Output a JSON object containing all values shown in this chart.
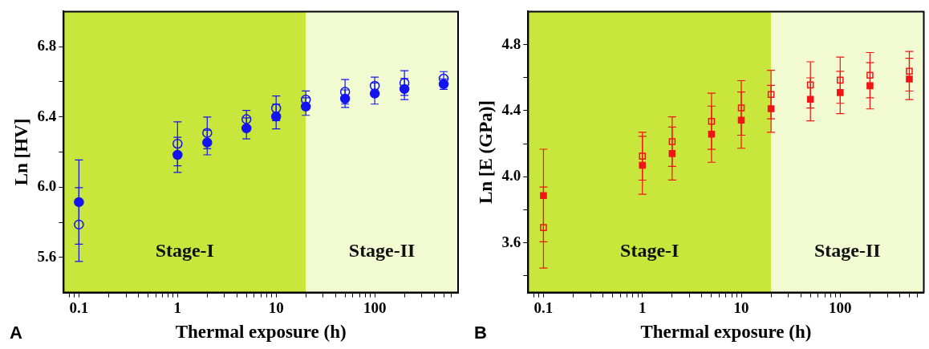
{
  "chart_data": [
    {
      "type": "scatter",
      "xlabel": "Thermal exposure (h)",
      "ylabel": "Ln [HV]",
      "log": "x",
      "grid": false,
      "legend": false,
      "marker": "circle",
      "annotations": [
        "A"
      ],
      "x": [
        0.1,
        1,
        2,
        5,
        10,
        20,
        50,
        100,
        200,
        500
      ],
      "xlim": [
        0.07,
        700
      ],
      "ylim": [
        5.4,
        7.0
      ],
      "xticks": [
        {
          "value": 0.08,
          "label": null
        },
        {
          "value": 0.09,
          "label": null
        },
        0.1,
        {
          "value": 0.2,
          "label": null
        },
        {
          "value": 0.3,
          "label": null
        },
        {
          "value": 0.4,
          "label": null
        },
        {
          "value": 0.5,
          "label": null
        },
        {
          "value": 0.6,
          "label": null
        },
        {
          "value": 0.7,
          "label": null
        },
        {
          "value": 0.8,
          "label": null
        },
        {
          "value": 0.9,
          "label": null
        },
        1,
        {
          "value": 2,
          "label": null
        },
        {
          "value": 3,
          "label": null
        },
        {
          "value": 4,
          "label": null
        },
        {
          "value": 5,
          "label": null
        },
        {
          "value": 6,
          "label": null
        },
        {
          "value": 7,
          "label": null
        },
        {
          "value": 8,
          "label": null
        },
        {
          "value": 9,
          "label": null
        },
        10,
        {
          "value": 20,
          "label": null
        },
        {
          "value": 30,
          "label": null
        },
        {
          "value": 40,
          "label": null
        },
        {
          "value": 50,
          "label": null
        },
        {
          "value": 60,
          "label": null
        },
        {
          "value": 70,
          "label": null
        },
        {
          "value": 80,
          "label": null
        },
        {
          "value": 90,
          "label": null
        },
        100,
        {
          "value": 200,
          "label": null
        },
        {
          "value": 300,
          "label": null
        },
        {
          "value": 400,
          "label": null
        },
        {
          "value": 500,
          "label": null
        },
        {
          "value": 600,
          "label": null
        }
      ],
      "yticks": [
        5.6,
        {
          "value": 5.8,
          "label": null
        },
        {
          "value": 6.0,
          "label": "6.0"
        },
        {
          "value": 6.2,
          "label": null
        },
        6.4,
        {
          "value": 6.6,
          "label": null
        },
        6.8
      ],
      "bands": [
        {
          "axis": "x",
          "from": 0.07,
          "to": 20,
          "label": "Stage-I",
          "color": "#c8e63c"
        },
        {
          "axis": "x",
          "from": 20,
          "to": 700,
          "label": "Stage-II",
          "color": "#f2fad2"
        }
      ],
      "series": [
        {
          "color": "#1414f0",
          "values": [
            5.915,
            6.184,
            6.254,
            6.335,
            6.402,
            6.459,
            6.504,
            6.533,
            6.559,
            6.587
          ],
          "errors": [
            0.24,
            0.1,
            0.07,
            0.06,
            0.07,
            0.05,
            0.05,
            0.06,
            0.06,
            0.03
          ]
        },
        {
          "color": "#1414f0",
          "values": [
            5.787,
            6.247,
            6.309,
            6.387,
            6.449,
            6.498,
            6.543,
            6.577,
            6.593,
            6.618
          ],
          "errors": [
            0.21,
            0.125,
            0.09,
            0.05,
            0.07,
            0.05,
            0.07,
            0.05,
            0.07,
            0.04
          ]
        }
      ]
    },
    {
      "type": "scatter",
      "xlabel": "Thermal exposure (h)",
      "ylabel": "Ln [E (GPa)]",
      "log": "x",
      "grid": false,
      "legend": false,
      "marker": "square",
      "annotations": [
        "B"
      ],
      "x": [
        0.1,
        1,
        2,
        5,
        10,
        20,
        50,
        100,
        200,
        500
      ],
      "xlim": [
        0.07,
        700
      ],
      "ylim": [
        3.3,
        5.0
      ],
      "xticks": [
        {
          "value": 0.08,
          "label": null
        },
        {
          "value": 0.09,
          "label": null
        },
        0.1,
        {
          "value": 0.2,
          "label": null
        },
        {
          "value": 0.3,
          "label": null
        },
        {
          "value": 0.4,
          "label": null
        },
        {
          "value": 0.5,
          "label": null
        },
        {
          "value": 0.6,
          "label": null
        },
        {
          "value": 0.7,
          "label": null
        },
        {
          "value": 0.8,
          "label": null
        },
        {
          "value": 0.9,
          "label": null
        },
        1,
        {
          "value": 2,
          "label": null
        },
        {
          "value": 3,
          "label": null
        },
        {
          "value": 4,
          "label": null
        },
        {
          "value": 5,
          "label": null
        },
        {
          "value": 6,
          "label": null
        },
        {
          "value": 7,
          "label": null
        },
        {
          "value": 8,
          "label": null
        },
        {
          "value": 9,
          "label": null
        },
        10,
        {
          "value": 20,
          "label": null
        },
        {
          "value": 30,
          "label": null
        },
        {
          "value": 40,
          "label": null
        },
        {
          "value": 50,
          "label": null
        },
        {
          "value": 60,
          "label": null
        },
        {
          "value": 70,
          "label": null
        },
        {
          "value": 80,
          "label": null
        },
        {
          "value": 90,
          "label": null
        },
        100,
        {
          "value": 200,
          "label": null
        },
        {
          "value": 300,
          "label": null
        },
        {
          "value": 400,
          "label": null
        },
        {
          "value": 500,
          "label": null
        },
        {
          "value": 600,
          "label": null
        }
      ],
      "yticks": [
        {
          "value": 3.4,
          "label": null
        },
        3.6,
        {
          "value": 3.8,
          "label": null
        },
        {
          "value": 4.0,
          "label": "4.0"
        },
        {
          "value": 4.2,
          "label": null
        },
        4.4,
        {
          "value": 4.6,
          "label": null
        },
        4.8
      ],
      "bands": [
        {
          "axis": "x",
          "from": 0.07,
          "to": 20,
          "label": "Stage-I",
          "color": "#c8e63c"
        },
        {
          "axis": "x",
          "from": 20,
          "to": 700,
          "label": "Stage-II",
          "color": "#f2fad2"
        }
      ],
      "series": [
        {
          "color": "#f01414",
          "values": [
            3.887,
            4.07,
            4.141,
            4.258,
            4.343,
            4.412,
            4.469,
            4.51,
            4.551,
            4.592
          ],
          "errors": [
            0.28,
            0.175,
            0.16,
            0.17,
            0.17,
            0.142,
            0.13,
            0.128,
            0.14,
            0.125
          ]
        },
        {
          "color": "#f01414",
          "values": [
            3.693,
            4.125,
            4.213,
            4.336,
            4.417,
            4.498,
            4.556,
            4.585,
            4.615,
            4.639
          ],
          "errors": [
            0.245,
            0.145,
            0.15,
            0.17,
            0.165,
            0.147,
            0.14,
            0.14,
            0.137,
            0.12
          ]
        }
      ]
    }
  ]
}
